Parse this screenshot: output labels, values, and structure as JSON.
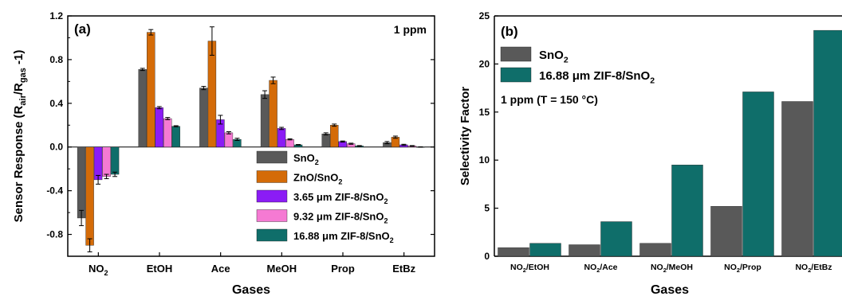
{
  "chart_data": [
    {
      "type": "bar",
      "panel_label": "(a)",
      "annotation": "1 ppm",
      "xlabel": "Gases",
      "ylabel": {
        "main": "Sensor Response (R",
        "sub1": "air",
        "mid": "/R",
        "sub2": "gas",
        "end": " -1)"
      },
      "ylim": [
        -1.0,
        1.2
      ],
      "yticks": [
        "-0.8",
        "-0.4",
        "0.0",
        "0.4",
        "0.8",
        "1.2"
      ],
      "ytick_values": [
        -0.8,
        -0.4,
        0.0,
        0.4,
        0.8,
        1.2
      ],
      "categories": [
        {
          "main": "NO",
          "sub": "2"
        },
        {
          "main": "EtOH",
          "sub": ""
        },
        {
          "main": "Ace",
          "sub": ""
        },
        {
          "main": "MeOH",
          "sub": ""
        },
        {
          "main": "Prop",
          "sub": ""
        },
        {
          "main": "EtBz",
          "sub": ""
        }
      ],
      "legend_position": "bottom-right",
      "series": [
        {
          "name": {
            "main": "SnO",
            "sub": "2",
            "end": ""
          },
          "color": "#595959",
          "values": [
            -0.65,
            0.71,
            0.54,
            0.48,
            0.12,
            0.04
          ],
          "errors": [
            0.07,
            0.01,
            0.015,
            0.035,
            0.01,
            0.01
          ]
        },
        {
          "name": {
            "main": "ZnO/SnO",
            "sub": "2",
            "end": ""
          },
          "color": "#d46b08",
          "values": [
            -0.9,
            1.05,
            0.97,
            0.61,
            0.2,
            0.09
          ],
          "errors": [
            0.06,
            0.025,
            0.13,
            0.03,
            0.01,
            0.01
          ]
        },
        {
          "name": {
            "main": "3.65 μm ZIF-8/SnO",
            "sub": "2",
            "end": ""
          },
          "color": "#8b1cf5",
          "values": [
            -0.3,
            0.36,
            0.25,
            0.17,
            0.05,
            0.02
          ],
          "errors": [
            0.04,
            0.01,
            0.04,
            0.01,
            0.005,
            0.005
          ]
        },
        {
          "name": {
            "main": "9.32 μm ZIF-8/SnO",
            "sub": "2",
            "end": ""
          },
          "color": "#f57ad3",
          "values": [
            -0.27,
            0.26,
            0.13,
            0.07,
            0.03,
            0.01
          ],
          "errors": [
            0.02,
            0.01,
            0.01,
            0.005,
            0.005,
            0.003
          ]
        },
        {
          "name": {
            "main": "16.88 μm ZIF-8/SnO",
            "sub": "2",
            "end": ""
          },
          "color": "#0f6e6a",
          "values": [
            -0.25,
            0.19,
            0.07,
            0.02,
            0.01,
            0.0
          ],
          "errors": [
            0.02,
            0.005,
            0.01,
            0.003,
            0.003,
            0.002
          ]
        }
      ]
    },
    {
      "type": "bar",
      "panel_label": "(b)",
      "annotation": "1 ppm (T = 150 °C)",
      "xlabel": "Gases",
      "ylabel": "Selectivity Factor",
      "ylim": [
        0,
        25
      ],
      "yticks": [
        "0",
        "5",
        "10",
        "15",
        "20",
        "25"
      ],
      "ytick_values": [
        0,
        5,
        10,
        15,
        20,
        25
      ],
      "categories": [
        {
          "main": "NO",
          "sub": "2",
          "end": "/EtOH"
        },
        {
          "main": "NO",
          "sub": "2",
          "end": "/Ace"
        },
        {
          "main": "NO",
          "sub": "2",
          "end": "/MeOH"
        },
        {
          "main": "NO",
          "sub": "2",
          "end": "/Prop"
        },
        {
          "main": "NO",
          "sub": "2",
          "end": "/EtBz"
        }
      ],
      "legend_position": "top-left",
      "series": [
        {
          "name": {
            "main": "SnO",
            "sub": "2",
            "end": ""
          },
          "color": "#595959",
          "values": [
            0.9,
            1.2,
            1.35,
            5.2,
            16.1
          ]
        },
        {
          "name": {
            "main": "16.88 μm ZIF-8/SnO",
            "sub": "2",
            "end": ""
          },
          "color": "#0f6e6a",
          "values": [
            1.35,
            3.6,
            9.5,
            17.1,
            23.5
          ]
        }
      ]
    }
  ]
}
